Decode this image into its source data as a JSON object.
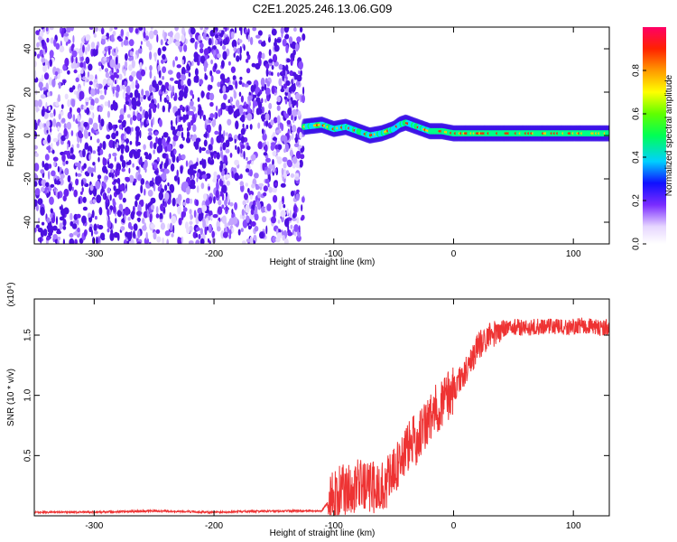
{
  "title": "C2E1.2025.246.13.06.G09",
  "chart_data": [
    {
      "type": "heatmap",
      "name": "spectrogram",
      "xlabel": "Height of straight line (km)",
      "ylabel": "Frequency (Hz)",
      "xlim": [
        -350,
        130
      ],
      "ylim": [
        -50,
        50
      ],
      "xticks": [
        "-300",
        "-200",
        "-100",
        "0",
        "100"
      ],
      "yticks": [
        "40",
        "20",
        "0",
        "-20",
        "-40"
      ],
      "colorbar": {
        "label": "Normalized spectral amplitude",
        "range": [
          0,
          1
        ],
        "ticks": [
          "0.0",
          "0.2",
          "0.4",
          "0.6",
          "0.8"
        ]
      },
      "features": {
        "noise_region_x": [
          -350,
          -125
        ],
        "signal_ridge": {
          "x": [
            -125,
            -110,
            -100,
            -90,
            -80,
            -70,
            -60,
            -50,
            -45,
            -40,
            -35,
            -30,
            -25,
            -20,
            -10,
            0,
            20,
            50,
            80,
            100,
            130
          ],
          "freq_hz": [
            4,
            5,
            3,
            4,
            2,
            0,
            1,
            3,
            5,
            6,
            5,
            4,
            3,
            2,
            2,
            1,
            1,
            1,
            1,
            1,
            1
          ]
        }
      }
    },
    {
      "type": "line",
      "name": "snr",
      "color": "#ee3333",
      "xlabel": "Height of straight line (km)",
      "ylabel": "SNR (10 * v/v)",
      "y_multiplier": "(x10⁴)",
      "xlim": [
        -350,
        130
      ],
      "ylim": [
        0,
        1.8
      ],
      "xticks": [
        "-300",
        "-200",
        "-100",
        "0",
        "100"
      ],
      "yticks": [
        "1.5",
        "1.0",
        "0.5"
      ],
      "series": [
        {
          "name": "SNR",
          "x": [
            -350,
            -300,
            -250,
            -200,
            -150,
            -110,
            -100,
            -90,
            -80,
            -70,
            -60,
            -50,
            -40,
            -30,
            -20,
            -10,
            0,
            10,
            20,
            30,
            40,
            50,
            60,
            70,
            80,
            90,
            100,
            110,
            120,
            130
          ],
          "y": [
            0.03,
            0.03,
            0.04,
            0.03,
            0.04,
            0.04,
            0.18,
            0.22,
            0.25,
            0.23,
            0.24,
            0.35,
            0.55,
            0.65,
            0.8,
            0.95,
            1.05,
            1.2,
            1.4,
            1.5,
            1.55,
            1.57,
            1.56,
            1.57,
            1.58,
            1.56,
            1.57,
            1.58,
            1.56,
            1.57
          ]
        }
      ]
    }
  ]
}
